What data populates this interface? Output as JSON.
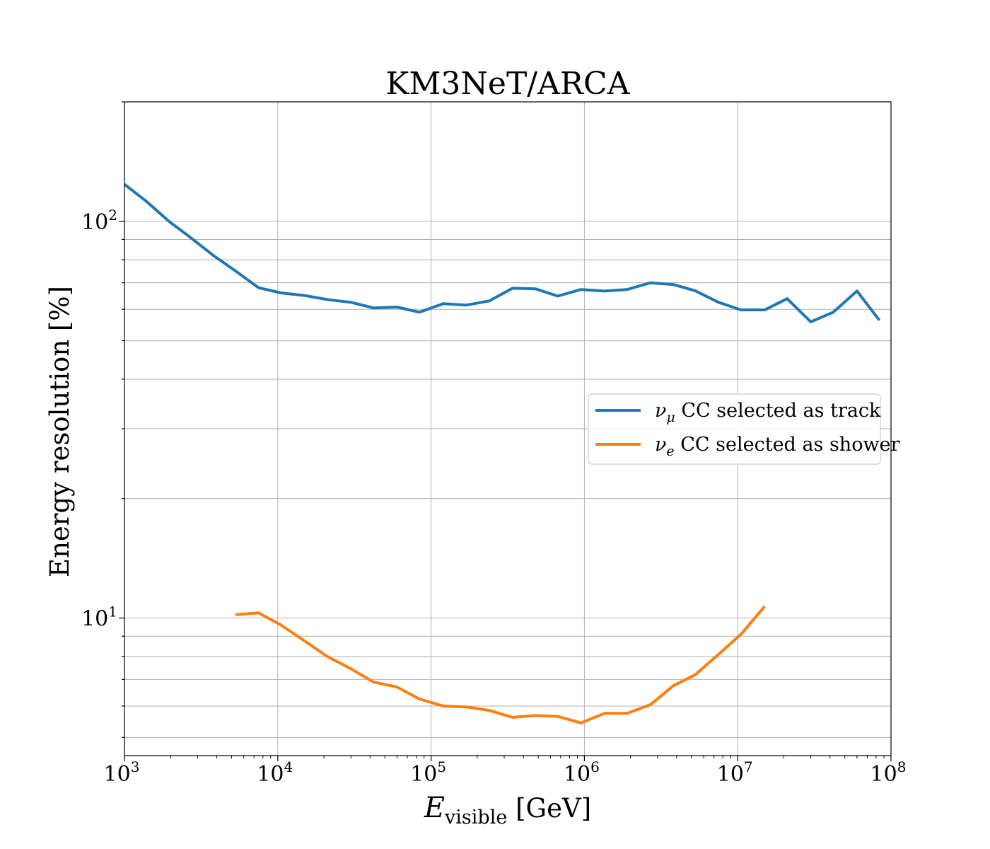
{
  "chart_data": {
    "type": "line",
    "title": "KM3NeT/ARCA",
    "xlabel": "E_visible [GeV]",
    "xlabel_parts": {
      "main": "E",
      "sub": "visible",
      "rest": " [GeV]"
    },
    "ylabel": "Energy resolution [%]",
    "x_scale": "log",
    "y_scale": "log",
    "xlim": [
      1000,
      100000000
    ],
    "ylim": [
      4.5,
      200
    ],
    "x_ticks": [
      {
        "base": "10",
        "exp": "3",
        "value": 1000
      },
      {
        "base": "10",
        "exp": "4",
        "value": 10000
      },
      {
        "base": "10",
        "exp": "5",
        "value": 100000
      },
      {
        "base": "10",
        "exp": "6",
        "value": 1000000
      },
      {
        "base": "10",
        "exp": "7",
        "value": 10000000
      },
      {
        "base": "10",
        "exp": "8",
        "value": 100000000
      }
    ],
    "y_ticks": [
      {
        "base": "10",
        "exp": "1",
        "value": 10
      },
      {
        "base": "10",
        "exp": "2",
        "value": 100
      }
    ],
    "grid": true,
    "legend_position": "center-right",
    "series": [
      {
        "name": "ν_μ CC selected as track",
        "legend": {
          "symbol": "ν",
          "sub": "μ",
          "text": " CC selected as track"
        },
        "color": "#1f77b4",
        "x": [
          1000,
          1400,
          1950,
          2700,
          3800,
          5300,
          7500,
          10500,
          15000,
          21000,
          30000,
          42000,
          60000,
          84000,
          120000,
          170000,
          240000,
          340000,
          480000,
          670000,
          950000,
          1350000,
          1900000,
          2700000,
          3800000,
          5300000,
          7500000,
          10500000,
          15000000,
          21000000,
          30000000,
          42000000,
          60000000,
          84000000
        ],
        "y": [
          124,
          112,
          100,
          91,
          82,
          75,
          68,
          66,
          65,
          63.5,
          62.5,
          60.5,
          60.8,
          59,
          62,
          61.5,
          63,
          67.8,
          67.6,
          64.8,
          67.3,
          66.7,
          67.3,
          70,
          69.3,
          66.8,
          62.5,
          59.8,
          59.8,
          63.8,
          55.8,
          59,
          66.7,
          56.3
        ]
      },
      {
        "name": "ν_e CC selected as shower",
        "legend": {
          "symbol": "ν",
          "sub": "e",
          "text": " CC selected as shower"
        },
        "color": "#ff7f0e",
        "x": [
          5300,
          7500,
          10500,
          15000,
          21000,
          30000,
          42000,
          60000,
          84000,
          120000,
          170000,
          240000,
          340000,
          480000,
          670000,
          950000,
          1350000,
          1900000,
          2700000,
          3800000,
          5300000,
          7500000,
          10500000,
          15000000
        ],
        "y": [
          10.2,
          10.3,
          9.6,
          8.75,
          8.0,
          7.45,
          6.9,
          6.7,
          6.25,
          6.0,
          5.97,
          5.85,
          5.62,
          5.68,
          5.65,
          5.44,
          5.75,
          5.75,
          6.05,
          6.75,
          7.2,
          8.1,
          9.1,
          10.7
        ]
      }
    ]
  }
}
